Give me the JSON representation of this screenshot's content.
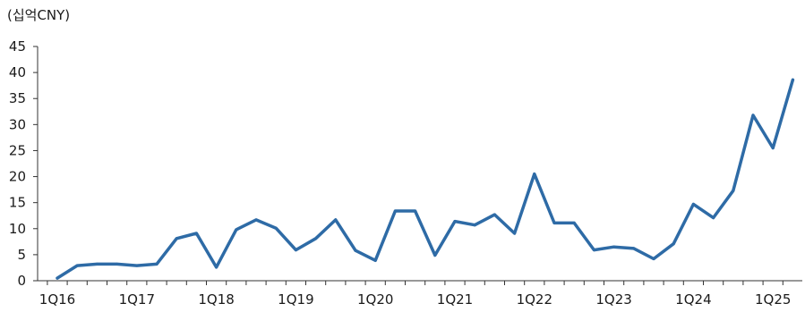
{
  "chart_data": {
    "type": "line",
    "unit_label": "(십억CNY)",
    "ylim": [
      0,
      45
    ],
    "yticks": [
      "0",
      "5",
      "10",
      "15",
      "20",
      "25",
      "30",
      "35",
      "40",
      "45"
    ],
    "xtick_labels": [
      "1Q16",
      "1Q17",
      "1Q18",
      "1Q19",
      "1Q20",
      "1Q21",
      "1Q22",
      "1Q23",
      "1Q24",
      "1Q25"
    ],
    "grid": false,
    "series": [
      {
        "color": "#2e6ba6",
        "x": [
          "1Q16",
          "2Q16",
          "3Q16",
          "4Q16",
          "1Q17",
          "2Q17",
          "3Q17",
          "4Q17",
          "1Q18",
          "2Q18",
          "3Q18",
          "4Q18",
          "1Q19",
          "2Q19",
          "3Q19",
          "4Q19",
          "1Q20",
          "2Q20",
          "3Q20",
          "4Q20",
          "1Q21",
          "2Q21",
          "3Q21",
          "4Q21",
          "1Q22",
          "2Q22",
          "3Q22",
          "4Q22",
          "1Q23",
          "2Q23",
          "3Q23",
          "4Q23",
          "1Q24",
          "2Q24",
          "3Q24",
          "4Q24",
          "1Q25",
          "2Q25"
        ],
        "values": [
          0.5,
          2.9,
          3.2,
          3.2,
          2.9,
          3.2,
          8.1,
          9.1,
          2.6,
          9.8,
          11.7,
          10.1,
          5.9,
          8.1,
          11.7,
          5.8,
          3.9,
          13.4,
          13.4,
          4.9,
          11.4,
          10.7,
          12.7,
          9.1,
          20.5,
          11.1,
          11.1,
          5.9,
          6.5,
          6.2,
          4.2,
          7.1,
          14.7,
          12.1,
          17.3,
          31.8,
          25.5,
          38.6
        ]
      }
    ]
  }
}
